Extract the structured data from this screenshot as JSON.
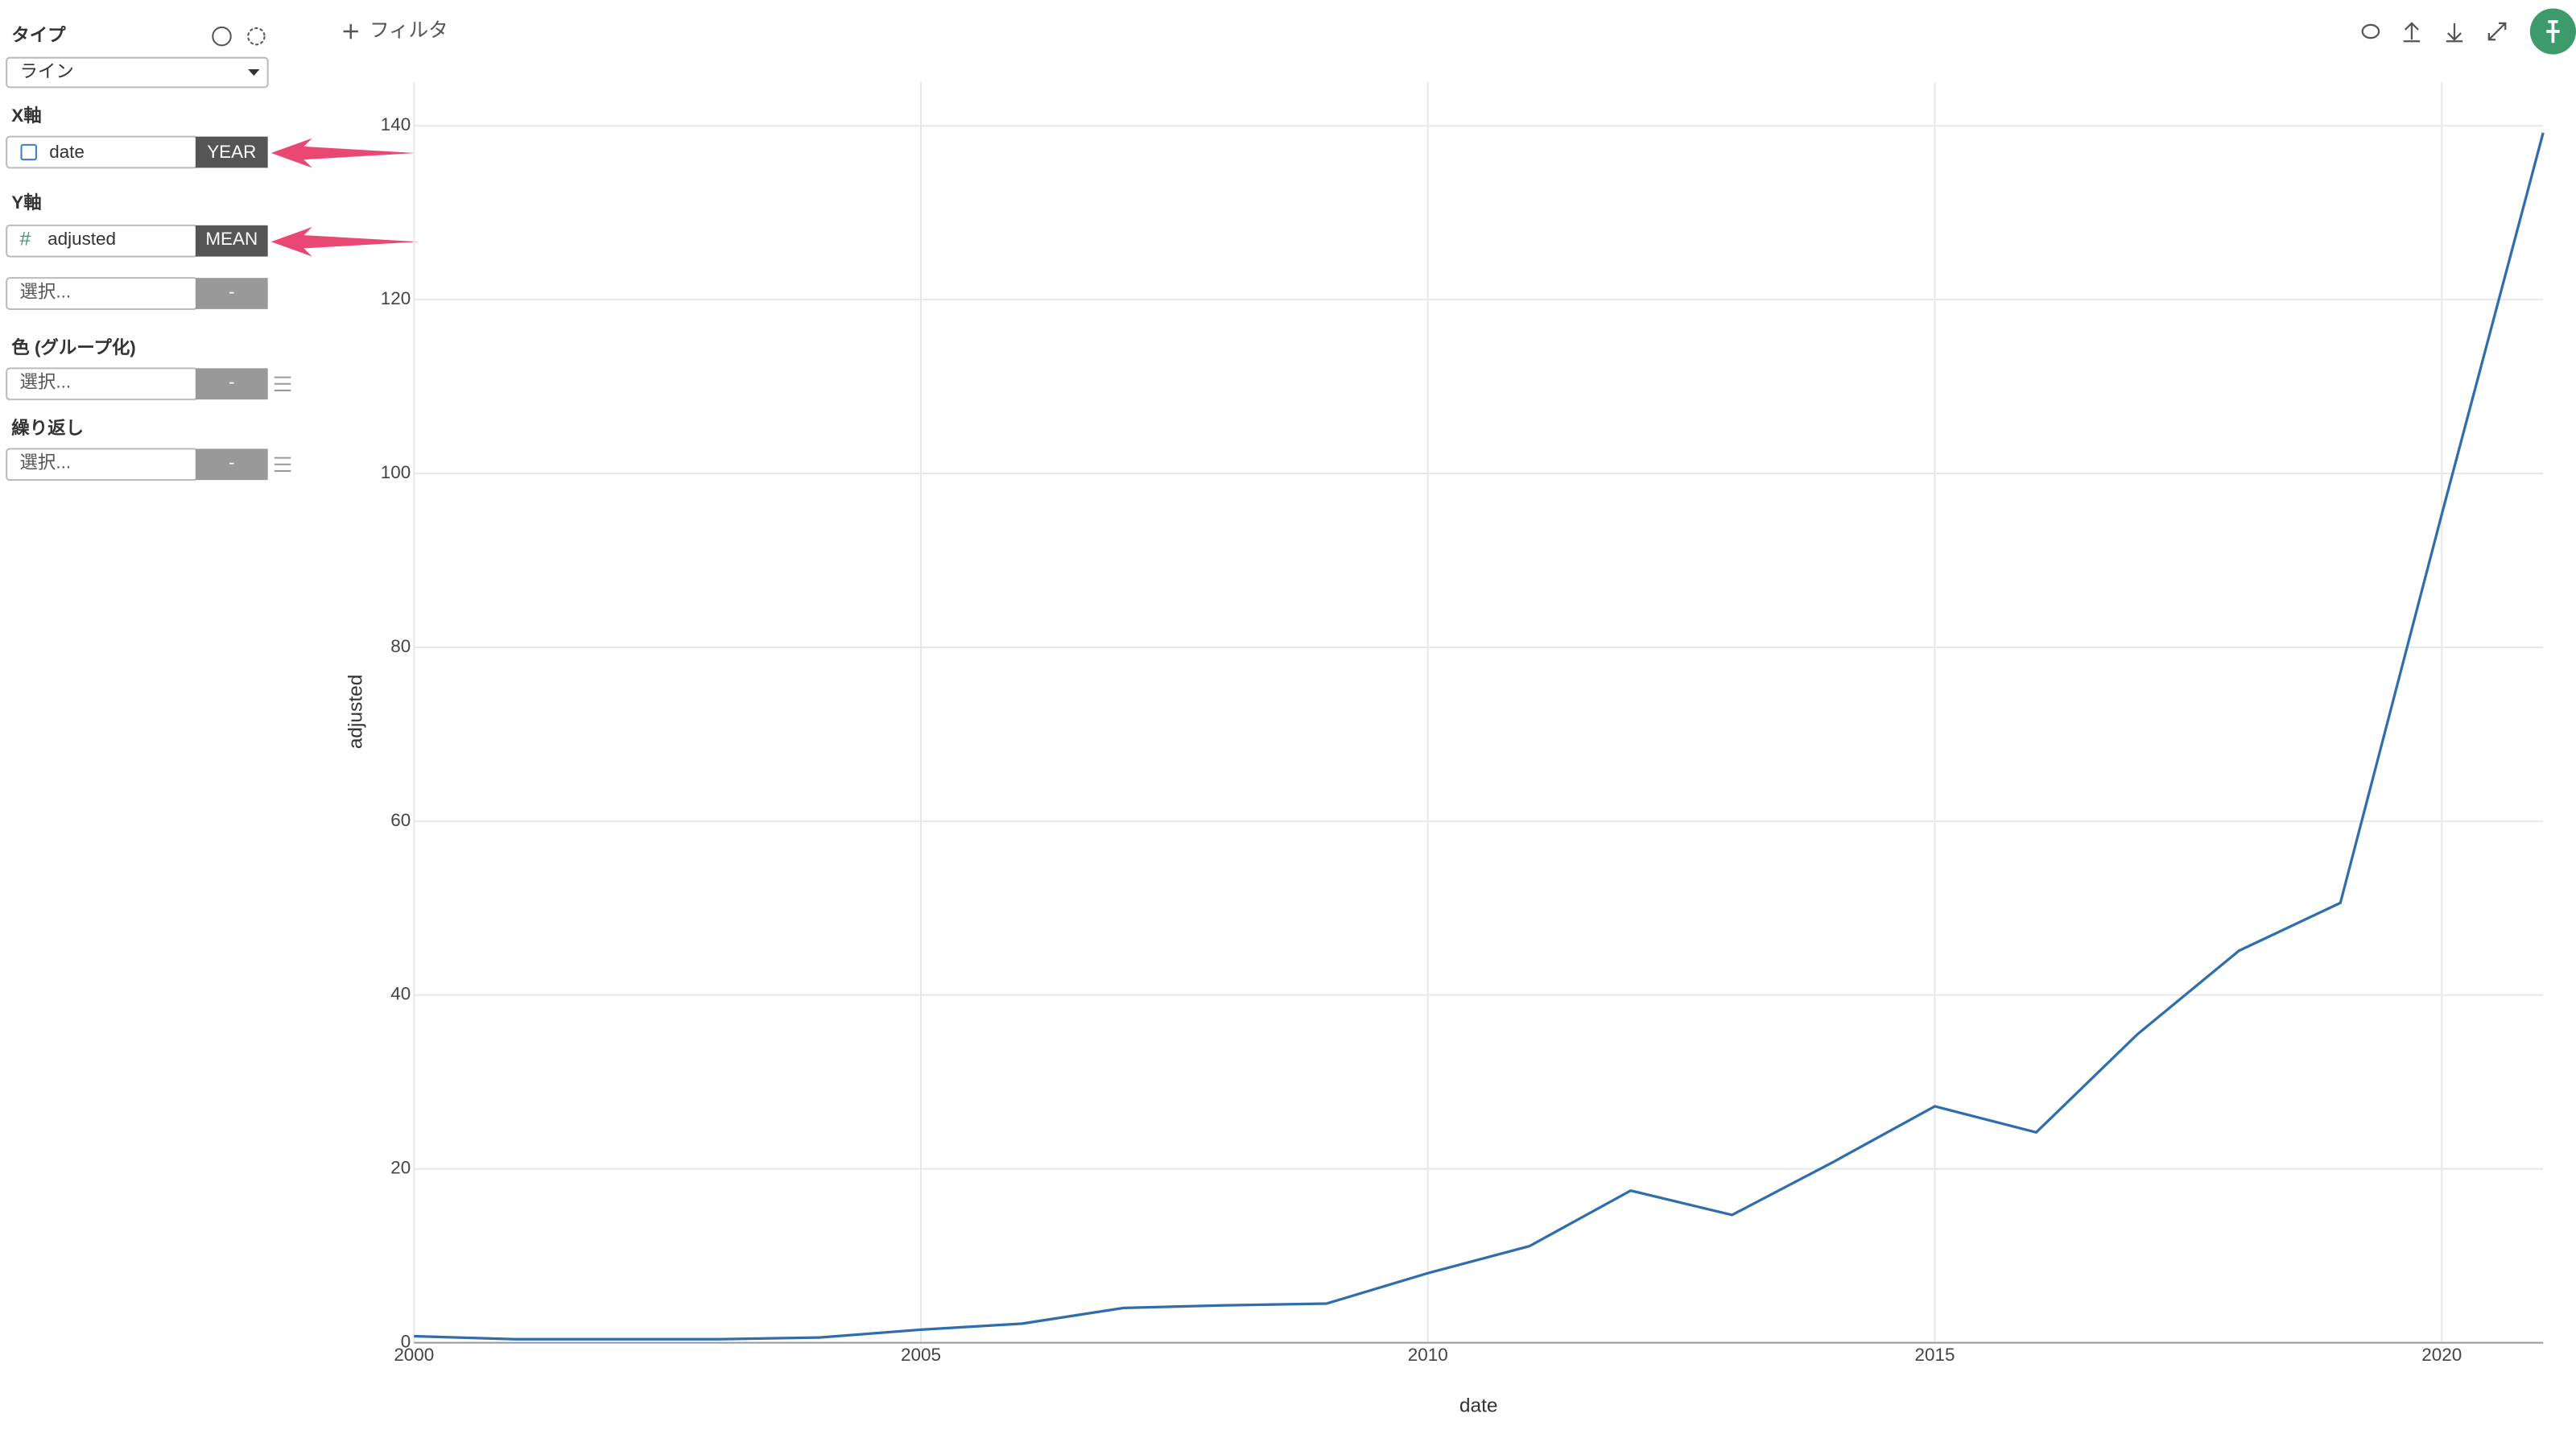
{
  "toolbar": {
    "filter": "フィルタ"
  },
  "sidebar": {
    "type_label": "タイプ",
    "type_value": "ライン",
    "x_axis_label": "X軸",
    "x_field": "date",
    "x_agg": "YEAR",
    "y_axis_label": "Y軸",
    "y_field": "adjusted",
    "y_agg": "MEAN",
    "y2_placeholder": "選択...",
    "y2_agg": "-",
    "color_label": "色 (グループ化)",
    "color_placeholder": "選択...",
    "color_agg": "-",
    "repeat_label": "繰り返し",
    "repeat_placeholder": "選択...",
    "repeat_agg": "-"
  },
  "chart_data": {
    "type": "line",
    "x_label": "date",
    "y_label": "adjusted",
    "x": [
      2000,
      2001,
      2002,
      2003,
      2004,
      2005,
      2006,
      2007,
      2008,
      2009,
      2010,
      2011,
      2012,
      2013,
      2014,
      2015,
      2016,
      2017,
      2018,
      2019,
      2020,
      2021
    ],
    "series": [
      {
        "name": "adjusted",
        "color": "#2f6eab",
        "values": [
          0.75,
          0.4,
          0.4,
          0.4,
          0.6,
          1.5,
          2.2,
          4.0,
          4.3,
          4.5,
          8.0,
          11.1,
          17.5,
          14.7,
          20.8,
          27.2,
          24.2,
          35.5,
          45.1,
          50.6,
          95.3,
          139.2
        ]
      }
    ],
    "xlim": [
      2000,
      2021
    ],
    "xticks": [
      2000,
      2005,
      2010,
      2015,
      2020
    ],
    "ylim": [
      0,
      145
    ],
    "yticks": [
      0,
      20,
      40,
      60,
      80,
      100,
      120,
      140
    ],
    "grid": true
  }
}
